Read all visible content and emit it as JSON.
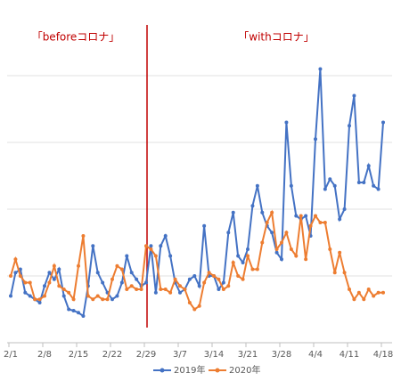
{
  "chart_data": {
    "type": "line",
    "annotations": [
      {
        "text": "「beforeコロナ」",
        "color": "#c00000"
      },
      {
        "text": "「withコロナ」",
        "color": "#c00000"
      }
    ],
    "divider": {
      "x": "2/29",
      "color": "#c00000"
    },
    "categories": [
      "2/1",
      null,
      null,
      null,
      null,
      null,
      null,
      "2/8",
      null,
      null,
      null,
      null,
      null,
      null,
      "2/15",
      null,
      null,
      null,
      null,
      null,
      null,
      "2/22",
      null,
      null,
      null,
      null,
      null,
      null,
      "2/29",
      null,
      null,
      null,
      null,
      null,
      null,
      "3/7",
      null,
      null,
      null,
      null,
      null,
      null,
      "3/14",
      null,
      null,
      null,
      null,
      null,
      null,
      "3/21",
      null,
      null,
      null,
      null,
      null,
      null,
      "3/28",
      null,
      null,
      null,
      null,
      null,
      null,
      "4/4",
      null,
      null,
      null,
      null,
      null,
      null,
      "4/11",
      null,
      null,
      null,
      null,
      null,
      null,
      "4/18"
    ],
    "series": [
      {
        "name": "2019年",
        "color": "#4472c4",
        "values": [
          0.7,
          1.05,
          1.1,
          0.75,
          0.7,
          0.65,
          0.6,
          0.85,
          1.05,
          0.95,
          1.1,
          0.7,
          0.5,
          0.48,
          0.45,
          0.4,
          0.85,
          1.45,
          1.05,
          0.9,
          0.75,
          0.65,
          0.7,
          0.9,
          1.3,
          1.05,
          0.95,
          0.85,
          0.9,
          1.45,
          0.75,
          1.45,
          1.6,
          1.3,
          0.9,
          0.75,
          0.8,
          0.95,
          1.0,
          0.85,
          1.75,
          1.0,
          1.0,
          0.8,
          0.9,
          1.65,
          1.95,
          1.3,
          1.2,
          1.4,
          2.05,
          2.35,
          1.95,
          1.75,
          1.65,
          1.35,
          1.25,
          3.3,
          2.35,
          1.9,
          1.85,
          1.9,
          1.6,
          3.05,
          4.1,
          2.3,
          2.45,
          2.35,
          1.85,
          2.0,
          3.25,
          3.7,
          2.4,
          2.4,
          2.65,
          2.35,
          2.3,
          3.3
        ]
      },
      {
        "name": "2020年",
        "color": "#ed7d31",
        "values": [
          1.0,
          1.25,
          1.0,
          0.9,
          0.9,
          0.65,
          0.65,
          0.7,
          0.9,
          1.15,
          0.85,
          0.8,
          0.75,
          0.65,
          1.15,
          1.6,
          0.7,
          0.65,
          0.7,
          0.65,
          0.65,
          0.95,
          1.15,
          1.1,
          0.8,
          0.85,
          0.8,
          0.8,
          1.45,
          1.4,
          1.3,
          0.8,
          0.8,
          0.75,
          0.95,
          0.85,
          0.8,
          0.6,
          0.5,
          0.55,
          0.9,
          1.05,
          1.0,
          0.95,
          0.8,
          0.85,
          1.2,
          1.0,
          0.95,
          1.3,
          1.1,
          1.1,
          1.5,
          1.8,
          1.95,
          1.4,
          1.5,
          1.65,
          1.4,
          1.3,
          1.9,
          1.25,
          1.75,
          1.9,
          1.8,
          1.8,
          1.4,
          1.05,
          1.35,
          1.05,
          0.8,
          0.65,
          0.75,
          0.65,
          0.8,
          0.7,
          0.75,
          0.75
        ]
      }
    ],
    "ylim": [
      0,
      5
    ],
    "yticks": [
      0,
      1,
      2,
      3,
      4
    ],
    "grid": true,
    "legend": "bottom"
  }
}
